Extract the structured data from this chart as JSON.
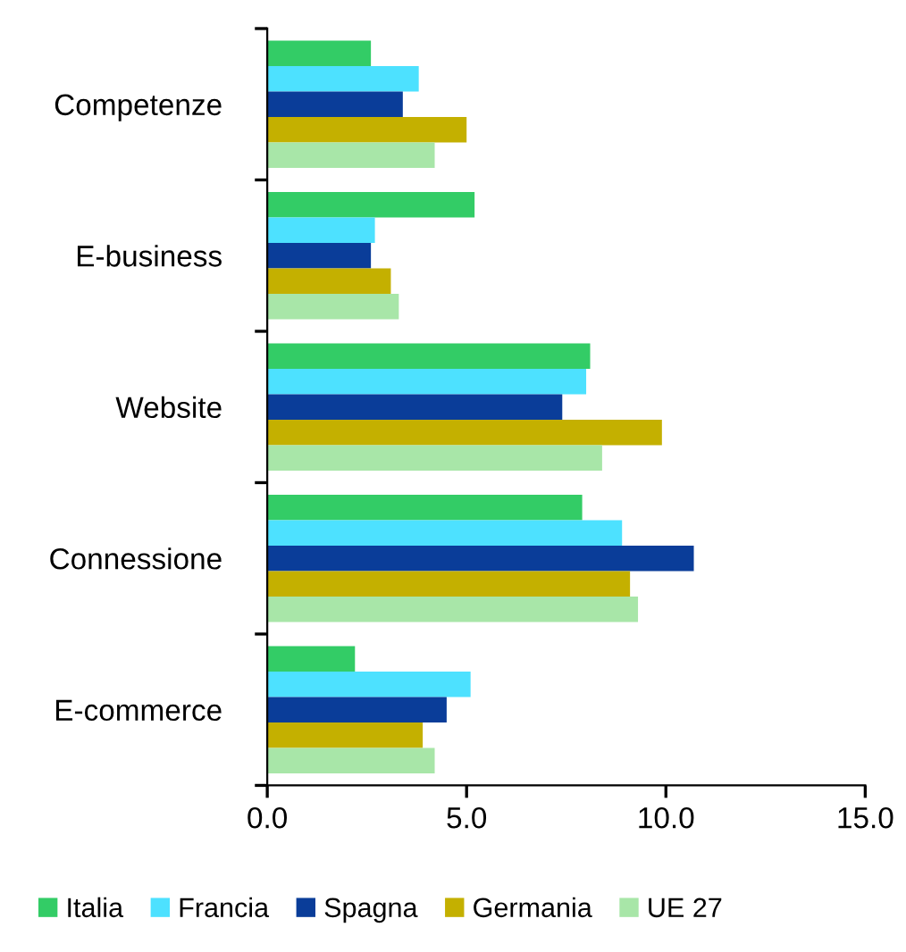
{
  "chart_data": {
    "type": "bar",
    "orientation": "horizontal",
    "categories": [
      "Competenze",
      "E-business",
      "Website",
      "Connessione",
      "E-commerce"
    ],
    "series": [
      {
        "name": "Italia",
        "color": "#33cc66",
        "values": [
          2.6,
          5.2,
          8.1,
          7.9,
          2.2
        ]
      },
      {
        "name": "Francia",
        "color": "#4de1ff",
        "values": [
          3.8,
          2.7,
          8.0,
          8.9,
          5.1
        ]
      },
      {
        "name": "Spagna",
        "color": "#0a3d99",
        "values": [
          3.4,
          2.6,
          7.4,
          10.7,
          4.5
        ]
      },
      {
        "name": "Germania",
        "color": "#c4b000",
        "values": [
          5.0,
          3.1,
          9.9,
          9.1,
          3.9
        ]
      },
      {
        "name": "UE 27",
        "color": "#a8e6a8",
        "values": [
          4.2,
          3.3,
          8.4,
          9.3,
          4.2
        ]
      }
    ],
    "xlim": [
      0,
      15
    ],
    "xticks": [
      {
        "value": 0,
        "label": "0.0"
      },
      {
        "value": 5,
        "label": "5.0"
      },
      {
        "value": 10,
        "label": "10.0"
      },
      {
        "value": 15,
        "label": "15.0"
      }
    ],
    "grid": false,
    "legend": "bottom"
  }
}
